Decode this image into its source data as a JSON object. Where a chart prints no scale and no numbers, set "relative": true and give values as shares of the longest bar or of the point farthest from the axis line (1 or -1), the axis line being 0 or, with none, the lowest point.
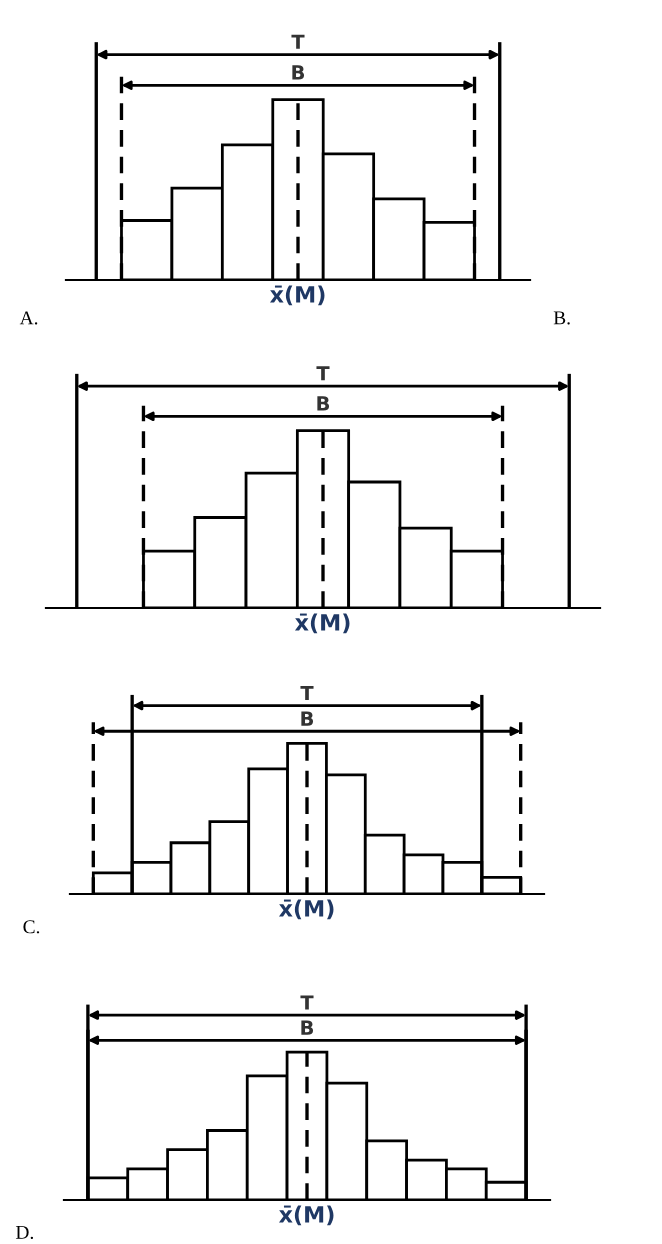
{
  "chart_data": [
    {
      "type": "bar",
      "relative": true,
      "categories": [
        null,
        null,
        null,
        null,
        null,
        null,
        null
      ],
      "color": "#ffffff",
      "values": [
        0.33,
        0.51,
        0.75,
        1,
        0.7,
        0.45,
        0.32
      ],
      "annotations": [
        "T",
        "B",
        "x̄(M)",
        "A.",
        "B."
      ]
    },
    {
      "type": "bar",
      "relative": true,
      "categories": [
        null,
        null,
        null,
        null,
        null,
        null,
        null
      ],
      "color": "#ffffff",
      "values": [
        0.32,
        0.51,
        0.76,
        1,
        0.71,
        0.45,
        0.32
      ],
      "annotations": [
        "T",
        "B",
        "x̄(M)"
      ]
    },
    {
      "type": "bar",
      "relative": true,
      "categories": [
        null,
        null,
        null,
        null,
        null,
        null,
        null,
        null,
        null,
        null,
        null
      ],
      "color": "#ffffff",
      "values": [
        0.14,
        0.21,
        0.34,
        0.48,
        0.83,
        1,
        0.79,
        0.39,
        0.26,
        0.21,
        0.11
      ],
      "annotations": [
        "T",
        "B",
        "x̄(M)",
        "C."
      ]
    },
    {
      "type": "bar",
      "relative": true,
      "categories": [
        null,
        null,
        null,
        null,
        null,
        null,
        null,
        null,
        null,
        null,
        null
      ],
      "color": "#ffffff",
      "values": [
        0.15,
        0.21,
        0.34,
        0.47,
        0.84,
        1,
        0.79,
        0.4,
        0.27,
        0.21,
        0.12
      ],
      "annotations": [
        "T",
        "B",
        "x̄(M)",
        "D."
      ]
    }
  ]
}
